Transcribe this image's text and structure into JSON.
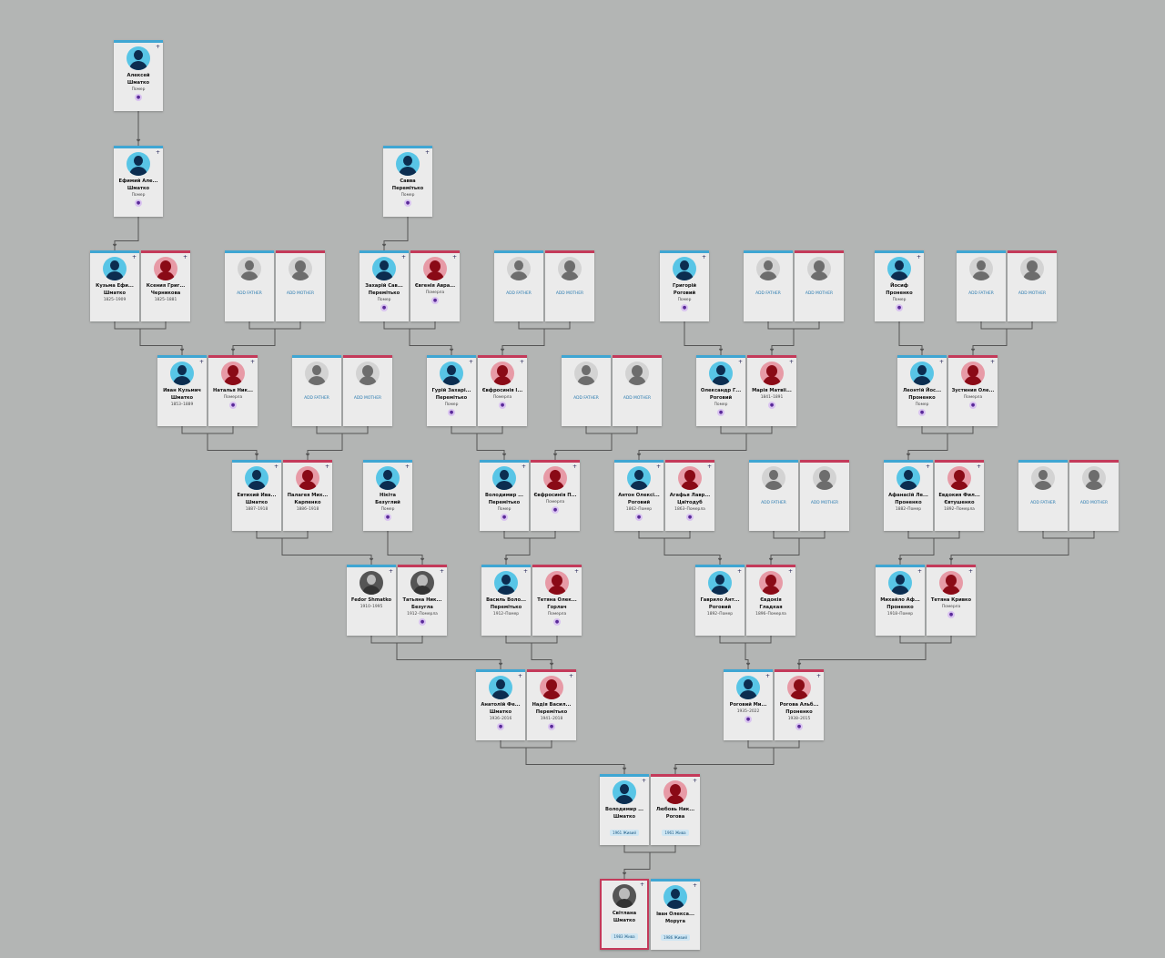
{
  "colors": {
    "background": "#b3b5b4",
    "male": "#3fa6d3",
    "female": "#c43a5a",
    "card": "#ebebeb"
  },
  "add_father_label": "ADD FATHER",
  "add_mother_label": "ADD MOTHER",
  "cards": [
    {
      "g": "m",
      "first": "Алексей",
      "last": "Шматко",
      "info": "Помер",
      "badge": "person-icon"
    },
    {
      "g": "m",
      "first": "Ефимий Але...",
      "last": "Шматко",
      "info": "Помер",
      "badge": "person-icon"
    },
    {
      "g": "m",
      "first": "Савва",
      "last": "Перемітько",
      "info": "Помер",
      "badge": "person-icon"
    },
    {
      "g": "m",
      "first": "Кузьма Ефи...",
      "last": "Шматко",
      "info": "1825–1909"
    },
    {
      "g": "f",
      "first": "Ксения Григ...",
      "last": "Черникова",
      "info": "1825–1881"
    },
    {
      "g": "add-m"
    },
    {
      "g": "add-f"
    },
    {
      "g": "m",
      "first": "Захарій Сав...",
      "last": "Перемітько",
      "info": "Помер",
      "badge": "person-icon"
    },
    {
      "g": "f",
      "first": "Євгенія Авра...",
      "last": "",
      "info": "Померла",
      "badge": "person-icon"
    },
    {
      "g": "add-m"
    },
    {
      "g": "add-f"
    },
    {
      "g": "m",
      "first": "Григорій",
      "last": "Роговий",
      "info": "Помер",
      "badge": "person-icon"
    },
    {
      "g": "add-m"
    },
    {
      "g": "add-f"
    },
    {
      "g": "m",
      "first": "Йосиф",
      "last": "Проненко",
      "info": "Помер",
      "badge": "person-icon"
    },
    {
      "g": "add-m"
    },
    {
      "g": "add-f"
    },
    {
      "g": "m",
      "first": "Иван Кузьмич",
      "last": "Шматко",
      "info": "1853–1889"
    },
    {
      "g": "f",
      "first": "Наталья Ник...",
      "last": "",
      "info": "Померла",
      "badge": "person-icon"
    },
    {
      "g": "add-m"
    },
    {
      "g": "add-f"
    },
    {
      "g": "m",
      "first": "Гурій Захарі...",
      "last": "Перемітько",
      "info": "Помер",
      "badge": "person-icon"
    },
    {
      "g": "f",
      "first": "Євфросинія І...",
      "last": "",
      "info": "Померла",
      "badge": "person-icon"
    },
    {
      "g": "add-m"
    },
    {
      "g": "add-f"
    },
    {
      "g": "m",
      "first": "Олександр Г...",
      "last": "Роговий",
      "info": "Помер",
      "badge": "person-icon"
    },
    {
      "g": "f",
      "first": "Марія Матвіі...",
      "last": "",
      "info": "1841–1891",
      "badge": "person-icon"
    },
    {
      "g": "m",
      "first": "Леонтій Йос...",
      "last": "Проненко",
      "info": "Помер",
      "badge": "person-icon"
    },
    {
      "g": "f",
      "first": "Зустиния Оле...",
      "last": "",
      "info": "Померла",
      "badge": "person-icon"
    },
    {
      "g": "m",
      "first": "Евтихий Ива...",
      "last": "Шматко",
      "info": "1887–1918"
    },
    {
      "g": "f",
      "first": "Палагея Мих...",
      "last": "Карпенко",
      "info": "1886–1918"
    },
    {
      "g": "m",
      "first": "Нікіта",
      "last": "Безуглий",
      "info": "Помер",
      "badge": "person-icon"
    },
    {
      "g": "m",
      "first": "Володимир ...",
      "last": "Перемітько",
      "info": "Помер",
      "badge": "person-icon"
    },
    {
      "g": "f",
      "first": "Євфросинія П...",
      "last": "",
      "info": "Померла",
      "badge": "person-icon"
    },
    {
      "g": "m",
      "first": "Антон Олексі...",
      "last": "Роговий",
      "info": "1862–Помер",
      "badge": "person-icon"
    },
    {
      "g": "f",
      "first": "Агафья Лавр...",
      "last": "Цвітодуб",
      "info": "1863–Померла",
      "badge": "person-icon"
    },
    {
      "g": "add-m"
    },
    {
      "g": "add-f"
    },
    {
      "g": "m",
      "first": "Афанасій Ле...",
      "last": "Проненко",
      "info": "1882–Помер"
    },
    {
      "g": "f",
      "first": "Евдокия Фил...",
      "last": "Євтушенко",
      "info": "1892–Померла"
    },
    {
      "g": "add-m"
    },
    {
      "g": "add-f"
    },
    {
      "g": "m",
      "photo": true,
      "first": "Fedor Shmatko",
      "last": "",
      "info": "1910–1995"
    },
    {
      "g": "f",
      "photo": true,
      "first": "Татьяна Ник...",
      "last": "Безугла",
      "info": "1912–Померла",
      "badge": "person-icon"
    },
    {
      "g": "m",
      "first": "Василь Воло...",
      "last": "Перемітько",
      "info": "1912–Помер"
    },
    {
      "g": "f",
      "first": "Тетяна Олек...",
      "last": "Горлач",
      "info": "Померла",
      "badge": "person-icon"
    },
    {
      "g": "m",
      "first": "Гаврило Ант...",
      "last": "Роговий",
      "info": "1892–Помер"
    },
    {
      "g": "f",
      "first": "Євдокія",
      "last": "Гладкая",
      "info": "1896–Померла"
    },
    {
      "g": "m",
      "first": "Михайло Аф...",
      "last": "Проненко",
      "info": "1918–Помер"
    },
    {
      "g": "f",
      "first": "Тетяна Кривко",
      "last": "",
      "info": "Померла",
      "badge": "person-icon"
    },
    {
      "g": "m",
      "first": "Анатолій Фе...",
      "last": "Шматко",
      "info": "1936–2016",
      "badge": "person-icon"
    },
    {
      "g": "f",
      "first": "Надія Васил...",
      "last": "Перемітько",
      "info": "1941–2018",
      "badge": "person-icon"
    },
    {
      "g": "m",
      "first": "Роговий Ми...",
      "last": "",
      "info": "1935–2022",
      "badge": "person-icon"
    },
    {
      "g": "f",
      "first": "Рогова Альб...",
      "last": "Проненко",
      "info": "1938–2015",
      "badge": "person-icon"
    },
    {
      "g": "m",
      "first": "Володимир ...",
      "last": "Шматко",
      "life": "1961 Живий"
    },
    {
      "g": "f",
      "first": "Любовь Ник...",
      "last": "Рогова",
      "life": "1961 Жива"
    },
    {
      "g": "f",
      "photo": true,
      "selected": true,
      "first": "Світлана",
      "last": "Шматко",
      "life": "1983 Жива"
    },
    {
      "g": "m",
      "first": "Іван Олекса...",
      "last": "Моруга",
      "life": "1986 Живий"
    }
  ]
}
